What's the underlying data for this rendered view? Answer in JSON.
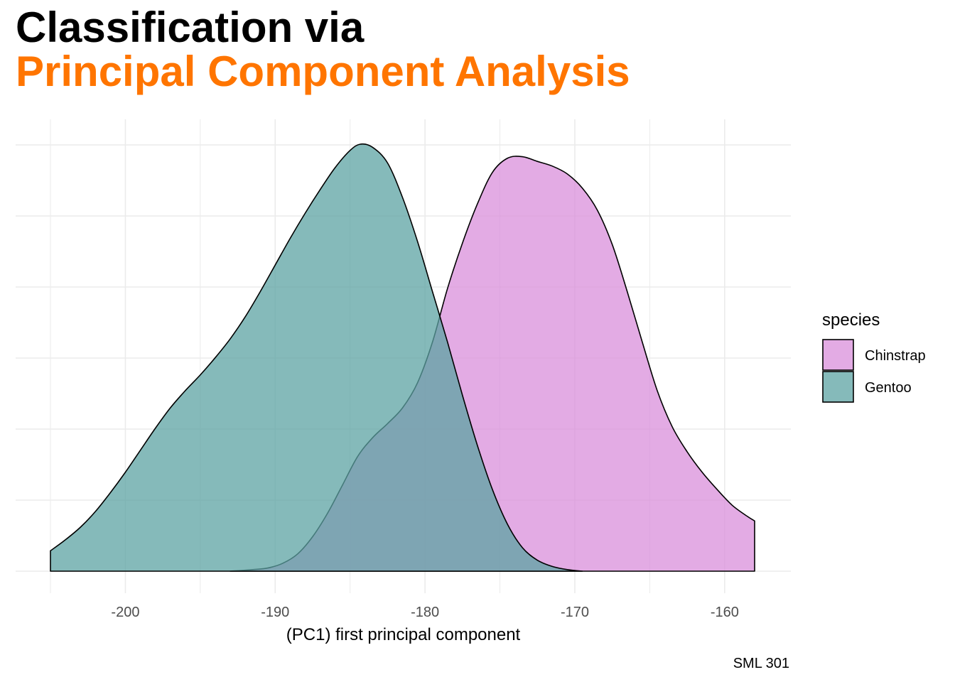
{
  "title": {
    "line1": "Classification via",
    "line2": "Principal Component Analysis",
    "line2_color": "#FF7500"
  },
  "caption": "SML 301",
  "chart_data": {
    "type": "area",
    "subtype": "density",
    "xlabel": "(PC1) first principal component",
    "ylabel": "",
    "xlim": [
      -205,
      -158
    ],
    "x_ticks": [
      -200,
      -190,
      -180,
      -170,
      -160
    ],
    "x_tick_labels": [
      "-200",
      "-190",
      "-180",
      "-170",
      "-160"
    ],
    "y_ticks_visible": false,
    "grid": true,
    "legend": {
      "title": "species",
      "placement": "right",
      "entries": [
        "Chinstrap",
        "Gentoo"
      ]
    },
    "series": [
      {
        "name": "Chinstrap",
        "color": "#DA8FDB",
        "alpha": 0.75,
        "points": [
          [
            -193,
            0.0
          ],
          [
            -191.5,
            0.001
          ],
          [
            -190.5,
            0.002
          ],
          [
            -189.5,
            0.005
          ],
          [
            -188.5,
            0.011
          ],
          [
            -187.5,
            0.022
          ],
          [
            -186.5,
            0.037
          ],
          [
            -185.5,
            0.055
          ],
          [
            -184.5,
            0.073
          ],
          [
            -183.5,
            0.085
          ],
          [
            -182.5,
            0.094
          ],
          [
            -181.5,
            0.104
          ],
          [
            -180.5,
            0.12
          ],
          [
            -179.5,
            0.146
          ],
          [
            -178.5,
            0.18
          ],
          [
            -177.5,
            0.209
          ],
          [
            -176.5,
            0.234
          ],
          [
            -175.5,
            0.254
          ],
          [
            -174.5,
            0.263
          ],
          [
            -173.5,
            0.264
          ],
          [
            -172.5,
            0.261
          ],
          [
            -171.5,
            0.258
          ],
          [
            -170.5,
            0.253
          ],
          [
            -169.5,
            0.244
          ],
          [
            -168.5,
            0.23
          ],
          [
            -167.5,
            0.208
          ],
          [
            -166.5,
            0.178
          ],
          [
            -165.5,
            0.146
          ],
          [
            -164.5,
            0.115
          ],
          [
            -163.5,
            0.092
          ],
          [
            -162.5,
            0.076
          ],
          [
            -161.5,
            0.063
          ],
          [
            -160.5,
            0.052
          ],
          [
            -159.5,
            0.042
          ],
          [
            -158.5,
            0.035
          ],
          [
            -158.0,
            0.032
          ]
        ]
      },
      {
        "name": "Gentoo",
        "color": "#5CA3A3",
        "alpha": 0.75,
        "points": [
          [
            -205.0,
            0.013
          ],
          [
            -204.0,
            0.02
          ],
          [
            -203.0,
            0.028
          ],
          [
            -202.0,
            0.038
          ],
          [
            -201.0,
            0.05
          ],
          [
            -200.0,
            0.063
          ],
          [
            -199.0,
            0.077
          ],
          [
            -198.0,
            0.091
          ],
          [
            -197.0,
            0.104
          ],
          [
            -196.0,
            0.115
          ],
          [
            -195.0,
            0.125
          ],
          [
            -194.0,
            0.136
          ],
          [
            -193.0,
            0.148
          ],
          [
            -192.0,
            0.162
          ],
          [
            -191.0,
            0.178
          ],
          [
            -190.0,
            0.195
          ],
          [
            -189.0,
            0.212
          ],
          [
            -188.0,
            0.228
          ],
          [
            -187.0,
            0.243
          ],
          [
            -186.0,
            0.257
          ],
          [
            -185.0,
            0.268
          ],
          [
            -184.3,
            0.272
          ],
          [
            -183.5,
            0.27
          ],
          [
            -182.5,
            0.26
          ],
          [
            -181.5,
            0.238
          ],
          [
            -180.5,
            0.21
          ],
          [
            -179.5,
            0.178
          ],
          [
            -178.5,
            0.146
          ],
          [
            -177.5,
            0.112
          ],
          [
            -176.5,
            0.08
          ],
          [
            -175.5,
            0.052
          ],
          [
            -174.5,
            0.03
          ],
          [
            -173.5,
            0.015
          ],
          [
            -172.5,
            0.007
          ],
          [
            -171.5,
            0.003
          ],
          [
            -170.5,
            0.001
          ],
          [
            -169.5,
            0.0
          ]
        ]
      }
    ]
  }
}
